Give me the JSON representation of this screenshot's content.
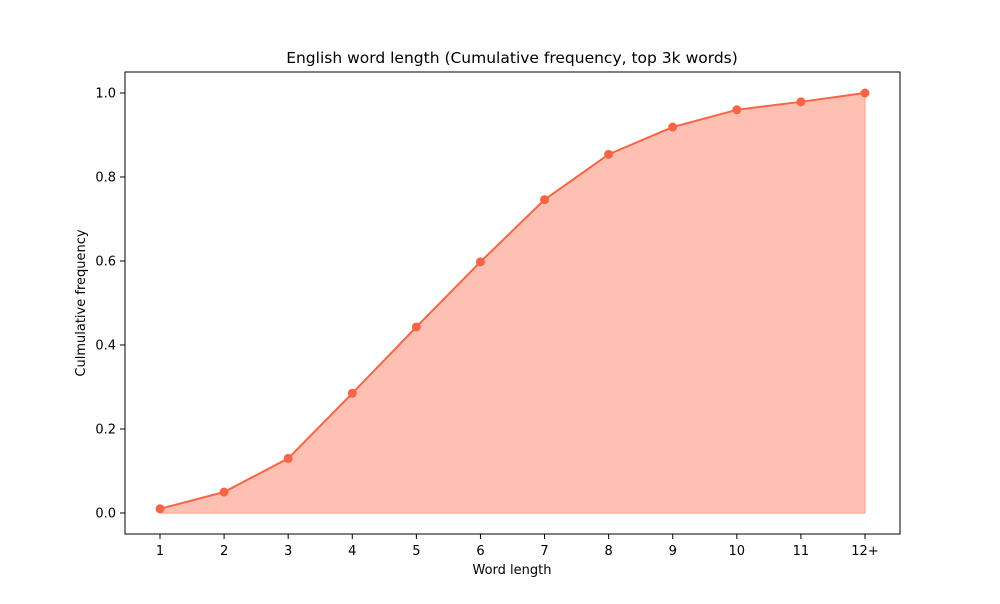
{
  "chart_data": {
    "type": "area",
    "title": "English word length (Cumulative frequency, top 3k words)",
    "xlabel": "Word length",
    "ylabel": "Culmulative frequency",
    "categories": [
      "1",
      "2",
      "3",
      "4",
      "5",
      "6",
      "7",
      "8",
      "9",
      "10",
      "11",
      "12+"
    ],
    "series": [
      {
        "values": [
          0.01,
          0.05,
          0.13,
          0.285,
          0.443,
          0.598,
          0.746,
          0.854,
          0.919,
          0.96,
          0.979,
          1.0
        ]
      }
    ],
    "ylim": [
      -0.05,
      1.05
    ],
    "yticks": [
      0.0,
      0.2,
      0.4,
      0.6,
      0.8,
      1.0
    ],
    "ytick_labels": [
      "0.0",
      "0.2",
      "0.4",
      "0.6",
      "0.8",
      "1.0"
    ],
    "grid": false,
    "colors": {
      "line": "#f86446",
      "fill": "#ffc0b4",
      "fill_edge": "#fba896",
      "axis": "#000000"
    }
  }
}
